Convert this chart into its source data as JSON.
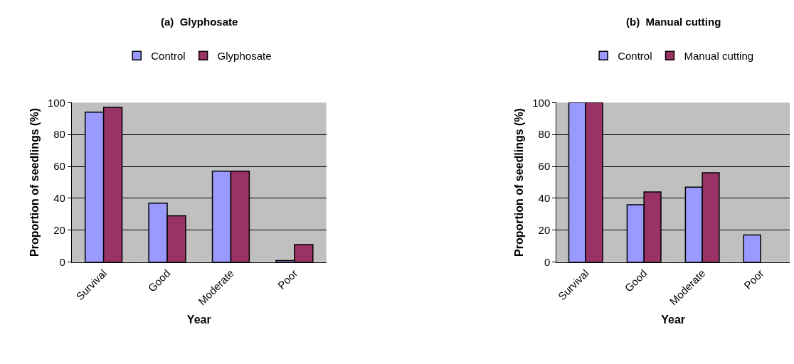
{
  "chart_data": [
    {
      "type": "bar",
      "title": "(a)  Glyphosate",
      "xlabel": "Year",
      "ylabel": "Proportion of seedlings (%)",
      "categories": [
        "Survival",
        "Good",
        "Moderate",
        "Poor"
      ],
      "series": [
        {
          "name": "Control",
          "color": "#9999ff",
          "values": [
            94,
            37,
            57,
            1
          ]
        },
        {
          "name": "Glyphosate",
          "color": "#993366",
          "values": [
            97,
            29,
            57,
            11
          ]
        }
      ],
      "ylim": [
        0,
        100
      ],
      "yticks": [
        0,
        20,
        40,
        60,
        80,
        100
      ],
      "grid": "y",
      "legend": "top"
    },
    {
      "type": "bar",
      "title": "(b)  Manual cutting",
      "xlabel": "Year",
      "ylabel": "Proportion of seedlings (%)",
      "categories": [
        "Survival",
        "Good",
        "Moderate",
        "Poor"
      ],
      "series": [
        {
          "name": "Control",
          "color": "#9999ff",
          "values": [
            100,
            36,
            47,
            17
          ]
        },
        {
          "name": "Manual cutting",
          "color": "#993366",
          "values": [
            100,
            44,
            56,
            null
          ]
        }
      ],
      "ylim": [
        0,
        100
      ],
      "yticks": [
        0,
        20,
        40,
        60,
        80,
        100
      ],
      "grid": "y",
      "legend": "top"
    }
  ]
}
